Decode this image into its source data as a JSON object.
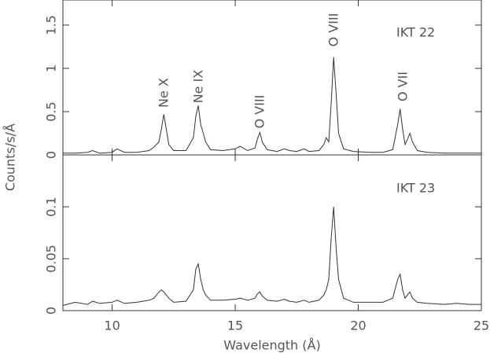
{
  "chart_data": [
    {
      "type": "line",
      "ylabel": "Counts/s/Å",
      "panel_label": "IKT 22",
      "annotations": [
        "Ne X",
        "Ne IX",
        "O VIII",
        "O VIII",
        "O VII"
      ],
      "xlim": [
        8,
        25
      ],
      "ylim": [
        0,
        1.79
      ],
      "yticks": [
        0,
        0.5,
        1,
        1.5
      ],
      "x": [
        8,
        8.5,
        9,
        9.2,
        9.5,
        10,
        10.2,
        10.5,
        11,
        11.5,
        11.7,
        11.9,
        12.0,
        12.1,
        12.2,
        12.3,
        12.5,
        13,
        13.3,
        13.4,
        13.5,
        13.6,
        13.7,
        13.8,
        14,
        14.5,
        15,
        15.2,
        15.5,
        15.8,
        15.9,
        16.0,
        16.1,
        16.3,
        16.7,
        17,
        17.2,
        17.5,
        17.8,
        18,
        18.4,
        18.6,
        18.7,
        18.8,
        18.9,
        19.0,
        19.1,
        19.2,
        19.4,
        19.8,
        20.5,
        21,
        21.4,
        21.6,
        21.7,
        21.8,
        21.9,
        22.0,
        22.1,
        22.2,
        22.4,
        22.8,
        23.5,
        24,
        24.5,
        25
      ],
      "color": "#333333",
      "values": [
        0.02,
        0.02,
        0.03,
        0.05,
        0.02,
        0.03,
        0.07,
        0.03,
        0.03,
        0.05,
        0.09,
        0.15,
        0.3,
        0.47,
        0.3,
        0.12,
        0.05,
        0.05,
        0.2,
        0.45,
        0.57,
        0.35,
        0.25,
        0.15,
        0.06,
        0.05,
        0.07,
        0.1,
        0.05,
        0.08,
        0.18,
        0.26,
        0.15,
        0.06,
        0.04,
        0.07,
        0.05,
        0.04,
        0.07,
        0.04,
        0.05,
        0.12,
        0.2,
        0.15,
        0.6,
        1.13,
        0.7,
        0.25,
        0.07,
        0.04,
        0.03,
        0.03,
        0.06,
        0.35,
        0.53,
        0.3,
        0.12,
        0.18,
        0.25,
        0.15,
        0.05,
        0.03,
        0.02,
        0.02,
        0.02,
        0.02
      ]
    },
    {
      "type": "line",
      "xlabel": "Wavelength (Å)",
      "panel_label": "IKT 23",
      "xlim": [
        8,
        25
      ],
      "xticks": [
        10,
        15,
        20,
        25
      ],
      "ylim": [
        0,
        0.15
      ],
      "yticks": [
        0,
        0.05,
        0.1
      ],
      "x": [
        8,
        8.5,
        9,
        9.2,
        9.5,
        10,
        10.2,
        10.5,
        11,
        11.5,
        11.7,
        11.9,
        12.0,
        12.1,
        12.2,
        12.3,
        12.5,
        13,
        13.3,
        13.4,
        13.5,
        13.6,
        13.7,
        13.8,
        14,
        14.5,
        15,
        15.2,
        15.5,
        15.8,
        15.9,
        16.0,
        16.1,
        16.3,
        16.7,
        17,
        17.2,
        17.5,
        17.8,
        18,
        18.4,
        18.6,
        18.7,
        18.8,
        18.9,
        19.0,
        19.1,
        19.2,
        19.4,
        19.8,
        20.5,
        21,
        21.4,
        21.6,
        21.7,
        21.8,
        21.9,
        22.0,
        22.1,
        22.2,
        22.4,
        22.8,
        23.5,
        24,
        24.5,
        25
      ],
      "color": "#333333",
      "values": [
        0.005,
        0.008,
        0.006,
        0.009,
        0.007,
        0.008,
        0.01,
        0.007,
        0.008,
        0.01,
        0.012,
        0.018,
        0.02,
        0.018,
        0.015,
        0.012,
        0.008,
        0.009,
        0.02,
        0.04,
        0.045,
        0.03,
        0.02,
        0.015,
        0.01,
        0.01,
        0.011,
        0.012,
        0.01,
        0.012,
        0.016,
        0.018,
        0.014,
        0.01,
        0.009,
        0.011,
        0.009,
        0.008,
        0.01,
        0.008,
        0.01,
        0.015,
        0.02,
        0.03,
        0.07,
        0.1,
        0.06,
        0.03,
        0.012,
        0.008,
        0.008,
        0.008,
        0.012,
        0.03,
        0.035,
        0.02,
        0.012,
        0.015,
        0.018,
        0.012,
        0.008,
        0.007,
        0.006,
        0.007,
        0.006,
        0.006
      ]
    }
  ]
}
